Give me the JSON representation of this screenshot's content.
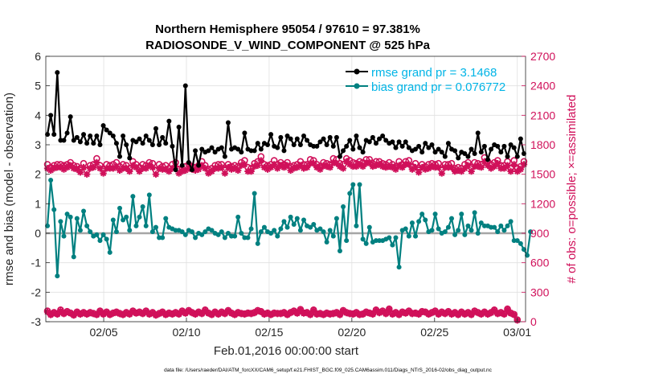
{
  "chart_data": {
    "type": "line",
    "title": "Northern Hemisphere 95054 / 97610 = 97.381%",
    "subtitle": "RADIOSONDE_V_WIND_COMPONENT @ 525 hPa",
    "xlabel": "Feb.01,2016 00:00:00 start",
    "ylabel_left": "rmse and bias (model - observation)",
    "ylabel_right": "# of obs: o=possible; ×=assimilated",
    "footnote": "data file: /Users/raeder/DAI/ATM_forcXX/CAM6_setup/f.e21.FHIST_BGC.f09_025.CAM6assim.011/Diags_NTrS_2016-02/obs_diag_output.nc",
    "ylim_left": [
      -3,
      6
    ],
    "ylim_right": [
      0,
      2700
    ],
    "xlim": [
      0.5,
      29.5
    ],
    "x_ticks": [
      4,
      9,
      14,
      19,
      24,
      29
    ],
    "x_tick_labels": [
      "02/05",
      "02/10",
      "02/15",
      "02/20",
      "02/25",
      "03/01"
    ],
    "y_ticks_left": [
      -3,
      -2,
      -1,
      0,
      1,
      2,
      3,
      4,
      5,
      6
    ],
    "y_ticks_right": [
      0,
      300,
      600,
      900,
      1200,
      1500,
      1800,
      2100,
      2400,
      2700
    ],
    "legend": [
      {
        "label": "rmse grand pr = 3.1468",
        "color": "#00b4e6"
      },
      {
        "label": "bias grand pr = 0.076772",
        "color": "#00b4e6"
      }
    ],
    "legend_position": "top-right",
    "grid": true,
    "colors": {
      "rmse": "#000000",
      "bias": "#008080",
      "obs": "#d0105a",
      "zero_line": "#a6a6a6"
    },
    "series_rmse": [
      3.35,
      4.0,
      3.35,
      5.45,
      3.15,
      3.15,
      3.4,
      3.95,
      3.15,
      3.25,
      3.1,
      3.35,
      3.05,
      3.3,
      3.05,
      3.3,
      3.0,
      3.65,
      3.5,
      3.4,
      3.3,
      3.05,
      2.6,
      3.3,
      3.0,
      2.55,
      3.15,
      3.1,
      3.2,
      3.05,
      3.3,
      3.15,
      3.0,
      3.55,
      3.0,
      3.25,
      3.05,
      3.8,
      2.95,
      2.15,
      3.6,
      2.3,
      5.0,
      2.4,
      2.15,
      2.8,
      2.3,
      2.85,
      2.75,
      2.8,
      2.9,
      2.75,
      2.85,
      2.9,
      2.6,
      3.75,
      2.85,
      2.9,
      2.85,
      2.75,
      3.4,
      2.85,
      2.8,
      2.8,
      3.05,
      2.85,
      3.05,
      3.0,
      3.35,
      2.95,
      2.9,
      3.25,
      2.8,
      3.3,
      3.2,
      3.0,
      3.2,
      3.0,
      3.3,
      3.15,
      3.0,
      2.95,
      2.95,
      3.1,
      3.2,
      3.0,
      3.25,
      2.95,
      3.25,
      2.6,
      2.8,
      2.95,
      3.15,
      2.85,
      3.3,
      2.9,
      2.75,
      3.15,
      3.1,
      3.25,
      3.05,
      3.2,
      3.3,
      3.15,
      3.05,
      3.1,
      2.9,
      3.1,
      2.95,
      3.1,
      2.9,
      2.8,
      2.85,
      2.95,
      2.75,
      3.05,
      2.9,
      3.0,
      2.75,
      2.85,
      2.75,
      2.6,
      3.05,
      2.85,
      2.8,
      2.55,
      2.75,
      2.7,
      2.6,
      2.85,
      2.7,
      3.4,
      2.75,
      2.95,
      2.5,
      2.85,
      3.0,
      2.95,
      2.75,
      2.95,
      2.6,
      3.0,
      2.9,
      2.6,
      3.2,
      2.7
    ],
    "series_bias": [
      0.25,
      1.8,
      0.8,
      -1.45,
      0.4,
      -0.1,
      0.65,
      0.55,
      -0.8,
      0.5,
      0.1,
      0.75,
      0.25,
      0.05,
      -0.1,
      -0.05,
      -0.25,
      -0.05,
      -0.2,
      -0.65,
      0.45,
      0.05,
      0.85,
      0.45,
      0.55,
      0.1,
      1.25,
      0.25,
      0.55,
      0.9,
      0.25,
      1.3,
      0.05,
      0.2,
      -0.15,
      -0.15,
      0.5,
      0.2,
      0.15,
      0.1,
      0.1,
      0.05,
      -0.05,
      0.1,
      0.05,
      -0.15,
      0.0,
      -0.05,
      0.05,
      0.15,
      0.1,
      0.0,
      -0.05,
      0.05,
      -0.15,
      0.0,
      -0.1,
      -0.1,
      0.55,
      0.0,
      -0.15,
      -0.15,
      0.15,
      1.35,
      -0.35,
      0.05,
      0.2,
      0.05,
      0.0,
      0.1,
      -0.1,
      0.15,
      0.4,
      0.2,
      0.55,
      0.3,
      0.5,
      0.1,
      0.45,
      0.25,
      0.2,
      0.3,
      0.1,
      0.15,
      0.05,
      -0.3,
      0.1,
      -0.1,
      0.5,
      -0.6,
      0.9,
      -0.25,
      1.35,
      1.65,
      0.25,
      1.65,
      -0.2,
      -0.35,
      0.2,
      -0.3,
      -0.25,
      -0.25,
      -0.25,
      -0.2,
      -0.15,
      -0.4,
      -0.15,
      -1.15,
      0.1,
      0.15,
      -0.1,
      0.35,
      -0.1,
      0.4,
      0.65,
      0.45,
      0.05,
      0.1,
      0.65,
      0.15,
      0.0,
      0.05,
      0.2,
      0.5,
      -0.05,
      0.1,
      0.65,
      -0.05,
      0.25,
      0.1,
      0.7,
      0.0,
      0.35,
      0.25,
      0.25,
      0.2,
      0.2,
      0.05,
      0.25,
      0.1,
      0.25,
      0.4,
      -0.25,
      -0.25,
      -0.35,
      -0.55,
      -0.75,
      0.05
    ],
    "series_obs_possible": [
      1600,
      1570,
      1590,
      1600,
      1600,
      1590,
      1600,
      1620,
      1590,
      1580,
      1560,
      1610,
      1540,
      1590,
      1600,
      1660,
      1590,
      1550,
      1600,
      1590,
      1600,
      1620,
      1580,
      1600,
      1590,
      1560,
      1630,
      1600,
      1570,
      1600,
      1590,
      1620,
      1610,
      1540,
      1600,
      1580,
      1590,
      1560,
      1600,
      1620,
      1550,
      1560,
      1580,
      1600,
      1580,
      1570,
      1590,
      1630,
      1590,
      1550,
      1560,
      1590,
      1600,
      1600,
      1550,
      1600,
      1580,
      1590,
      1580,
      1620,
      1640,
      1570,
      1560,
      1610,
      1630,
      1680,
      1600,
      1590,
      1600,
      1640,
      1600,
      1620,
      1600,
      1620,
      1580,
      1590,
      1600,
      1630,
      1600,
      1600,
      1650,
      1640,
      1600,
      1580,
      1620,
      1610,
      1600,
      1660,
      1650,
      1610,
      1600,
      1660,
      1640,
      1620,
      1610,
      1630,
      1620,
      1650,
      1650,
      1610,
      1630,
      1630,
      1610,
      1600,
      1620,
      1600,
      1580,
      1630,
      1600,
      1630,
      1640,
      1580,
      1610,
      1560,
      1600,
      1580,
      1600,
      1610,
      1600,
      1610,
      1550,
      1600,
      1600,
      1610,
      1560,
      1570,
      1560,
      1600,
      1620,
      1570,
      1620,
      1610,
      1600,
      1670,
      1630,
      1600,
      1620,
      1640,
      1590,
      1590,
      1630,
      1560,
      1640,
      1560,
      1580,
      1630
    ],
    "series_obs_assimilated": [
      1560,
      1540,
      1560,
      1570,
      1570,
      1550,
      1570,
      1590,
      1560,
      1550,
      1520,
      1570,
      1500,
      1560,
      1570,
      1620,
      1560,
      1510,
      1560,
      1560,
      1560,
      1580,
      1540,
      1560,
      1560,
      1530,
      1590,
      1570,
      1530,
      1560,
      1560,
      1590,
      1570,
      1500,
      1560,
      1550,
      1550,
      1530,
      1560,
      1580,
      1510,
      1530,
      1540,
      1560,
      1550,
      1540,
      1550,
      1590,
      1560,
      1510,
      1530,
      1560,
      1560,
      1570,
      1510,
      1570,
      1550,
      1560,
      1540,
      1590,
      1600,
      1530,
      1530,
      1580,
      1590,
      1640,
      1570,
      1550,
      1570,
      1600,
      1560,
      1590,
      1570,
      1590,
      1540,
      1560,
      1570,
      1590,
      1560,
      1570,
      1610,
      1610,
      1570,
      1550,
      1590,
      1580,
      1570,
      1620,
      1610,
      1580,
      1560,
      1630,
      1600,
      1580,
      1580,
      1600,
      1580,
      1610,
      1620,
      1580,
      1590,
      1600,
      1580,
      1570,
      1580,
      1570,
      1550,
      1590,
      1570,
      1600,
      1600,
      1550,
      1570,
      1520,
      1570,
      1550,
      1560,
      1580,
      1570,
      1570,
      1510,
      1570,
      1570,
      1570,
      1530,
      1540,
      1530,
      1560,
      1590,
      1530,
      1580,
      1580,
      1570,
      1630,
      1590,
      1560,
      1580,
      1610,
      1560,
      1560,
      1590,
      1530,
      1600,
      1530,
      1550,
      1600
    ],
    "series_obs_low_possible": [
      110,
      75,
      95,
      80,
      120,
      85,
      105,
      90,
      70,
      100,
      80,
      95,
      80,
      95,
      85,
      75,
      110,
      80,
      100,
      75,
      90,
      100,
      85,
      75,
      95,
      80,
      110,
      90,
      100,
      85,
      110,
      80,
      95,
      70,
      85,
      100,
      75,
      90,
      80,
      95,
      80,
      110,
      90,
      115,
      95,
      80,
      100,
      85,
      120,
      90,
      75,
      100,
      80,
      100,
      85,
      115,
      90,
      75,
      95,
      85,
      80,
      90,
      85,
      95,
      115,
      105,
      80,
      90,
      75,
      90,
      85,
      85,
      95,
      75,
      95,
      110,
      90,
      125,
      90,
      95,
      75,
      120,
      80,
      85,
      75,
      90,
      80,
      85,
      95,
      75,
      115,
      95,
      85,
      80,
      95,
      75,
      80,
      100,
      90,
      80,
      120,
      95,
      110,
      85,
      130,
      80,
      95,
      75,
      100,
      90,
      110,
      85,
      90,
      80,
      105,
      100,
      80,
      95,
      110,
      80,
      100,
      85,
      105,
      80,
      95,
      75,
      100,
      80,
      95,
      75,
      110,
      95,
      80,
      100,
      80,
      95,
      120,
      85,
      95,
      80,
      130,
      90,
      75,
      20
    ],
    "series_obs_low_assimilated": [
      100,
      70,
      90,
      75,
      110,
      80,
      100,
      85,
      65,
      95,
      75,
      90,
      75,
      90,
      80,
      70,
      105,
      75,
      95,
      70,
      85,
      95,
      80,
      70,
      90,
      75,
      105,
      85,
      95,
      80,
      105,
      75,
      90,
      65,
      80,
      95,
      70,
      85,
      75,
      90,
      75,
      105,
      85,
      110,
      90,
      75,
      95,
      80,
      115,
      85,
      70,
      95,
      75,
      95,
      80,
      110,
      85,
      70,
      90,
      80,
      75,
      85,
      80,
      90,
      110,
      100,
      75,
      85,
      70,
      85,
      80,
      80,
      90,
      70,
      90,
      105,
      85,
      120,
      85,
      90,
      70,
      115,
      75,
      80,
      70,
      85,
      75,
      80,
      90,
      70,
      110,
      90,
      80,
      75,
      90,
      70,
      75,
      95,
      85,
      75,
      115,
      90,
      105,
      80,
      125,
      75,
      90,
      70,
      95,
      85,
      105,
      80,
      85,
      75,
      100,
      95,
      75,
      90,
      105,
      75,
      95,
      80,
      100,
      75,
      90,
      70,
      95,
      75,
      90,
      70,
      105,
      90,
      75,
      95,
      75,
      90,
      115,
      80,
      90,
      75,
      125,
      85,
      70,
      15
    ]
  }
}
